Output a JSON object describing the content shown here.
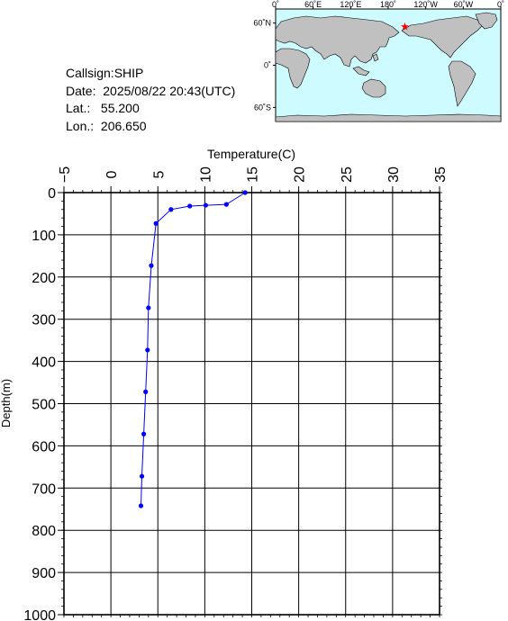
{
  "info": {
    "callsign": "Callsign:SHIP",
    "date": "Date:  2025/08/22 20:43(UTC)",
    "lat": "Lat.:   55.200",
    "lon": "Lon.:  206.650"
  },
  "inset_map": {
    "top_labels": [
      "0˚",
      "60˚E",
      "120˚E",
      "180˚",
      "120˚W",
      "60˚W",
      "0˚"
    ],
    "left_labels": [
      "60˚N",
      "0˚",
      "60˚S"
    ],
    "ocean_color": "#cdfbff",
    "land_color": "#c0c0c0",
    "marker": {
      "lon": 206.65,
      "lat": 55.2,
      "color": "#ff0000",
      "icon": "star-icon"
    }
  },
  "chart_data": {
    "type": "line",
    "xlabel": "Temperature(C)",
    "ylabel": "Depth(m)",
    "xlim": [
      -5,
      35
    ],
    "ylim": [
      0,
      1000
    ],
    "y_inverted": true,
    "x_ticks": [
      -5,
      0,
      5,
      10,
      15,
      20,
      25,
      30,
      35
    ],
    "x_tick_labels": [
      "−5",
      "0",
      "5",
      "10",
      "15",
      "20",
      "25",
      "30",
      "35"
    ],
    "y_ticks": [
      0,
      100,
      200,
      300,
      400,
      500,
      600,
      700,
      800,
      900,
      1000
    ],
    "y_tick_labels": [
      "0",
      "100",
      "200",
      "300",
      "400",
      "500",
      "600",
      "700",
      "800",
      "900",
      "1000"
    ],
    "grid": true,
    "line_color": "#0000ff",
    "series": [
      {
        "x": [
          14.3,
          12.3,
          10.1,
          8.4,
          6.4,
          4.8,
          4.3,
          4.0,
          3.9,
          3.7,
          3.5,
          3.3,
          3.2
        ],
        "y": [
          0,
          28,
          30,
          32,
          40,
          73,
          173,
          273,
          373,
          472,
          572,
          672,
          742
        ]
      }
    ]
  }
}
